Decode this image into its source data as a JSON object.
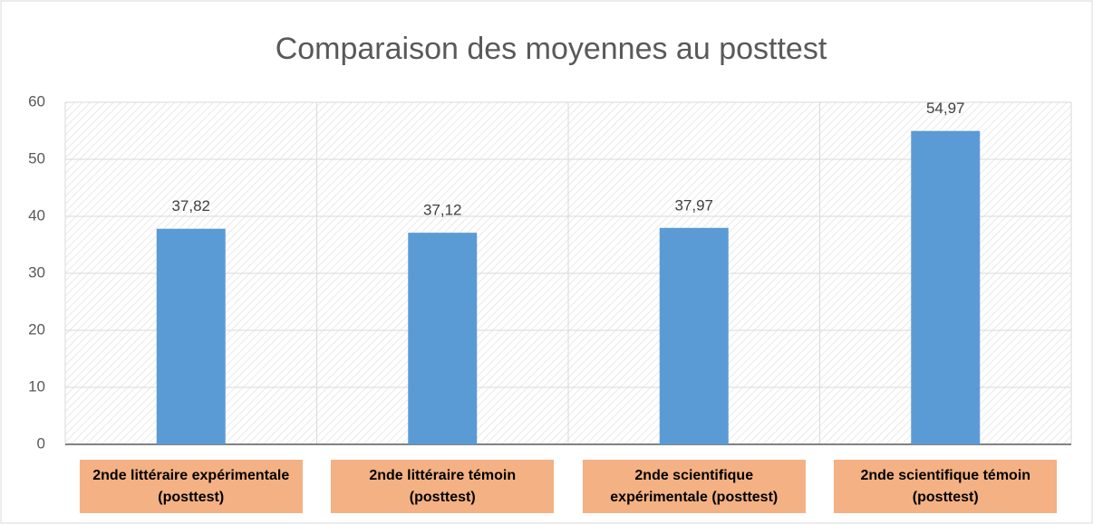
{
  "chart_data": {
    "type": "bar",
    "title": "Comparaison des moyennes au posttest",
    "categories": [
      "2nde littéraire expérimentale (posttest)",
      "2nde littéraire témoin (posttest)",
      "2nde scientifique expérimentale (posttest)",
      "2nde scientifique témoin (posttest)"
    ],
    "values": [
      37.82,
      37.12,
      37.97,
      54.97
    ],
    "value_labels": [
      "37,82",
      "37,12",
      "37,97",
      "54,97"
    ],
    "color": "#5b9bd5",
    "ylim": [
      0,
      60
    ],
    "yticks": [
      0,
      10,
      20,
      30,
      40,
      50,
      60
    ],
    "grid": true
  }
}
